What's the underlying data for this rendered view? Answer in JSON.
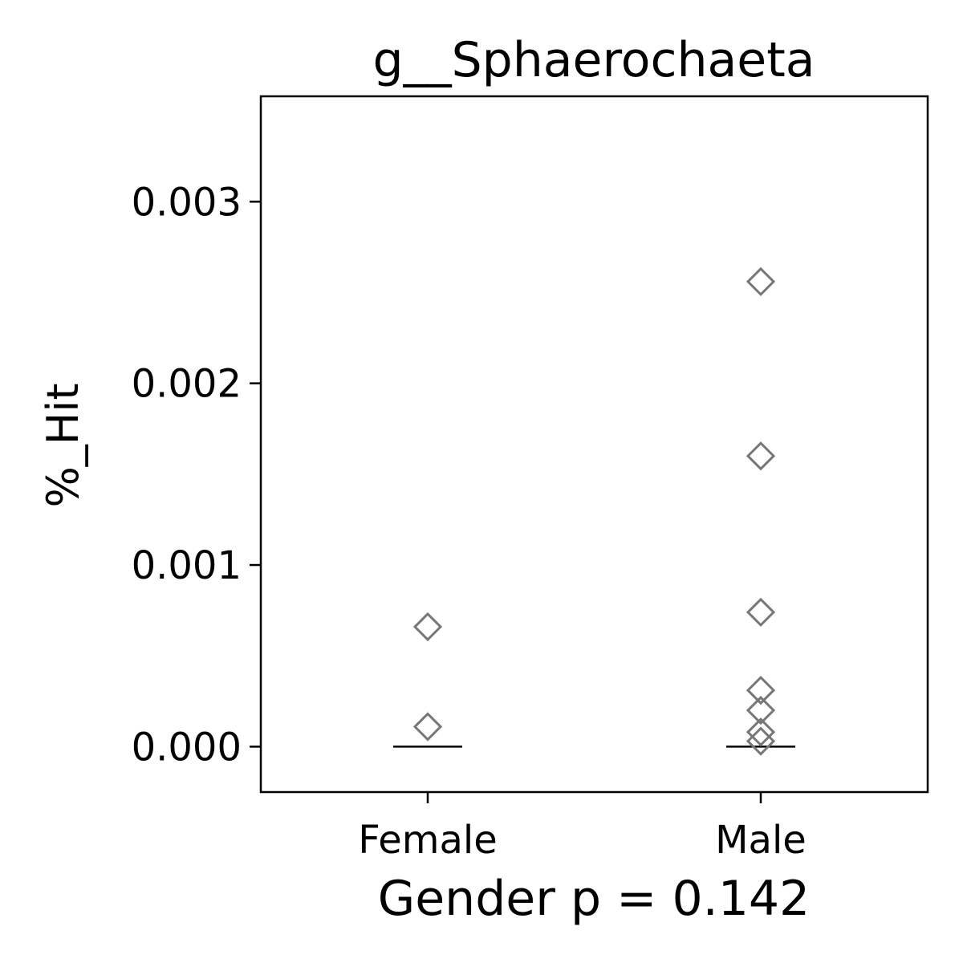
{
  "chart_data": {
    "type": "scatter",
    "title": "g__Sphaerochaeta",
    "xlabel": "Gender p = 0.142",
    "ylabel": "%_Hit",
    "categories": [
      "Female",
      "Male"
    ],
    "ylim": [
      -0.00025,
      0.00358
    ],
    "yticks": [
      0.0,
      0.001,
      0.002,
      0.003
    ],
    "ytick_labels": [
      "0.000",
      "0.001",
      "0.002",
      "0.003"
    ],
    "grid": false,
    "marker": "diamond-open",
    "marker_color": "#777777",
    "median_color": "#000000",
    "series": [
      {
        "category": "Female",
        "values": [
          0.00066,
          0.00011
        ],
        "median": 0.0
      },
      {
        "category": "Male",
        "values": [
          0.00256,
          0.0016,
          0.00074,
          0.00031,
          0.0002,
          8e-05,
          3e-05
        ],
        "median": 0.0
      }
    ]
  }
}
